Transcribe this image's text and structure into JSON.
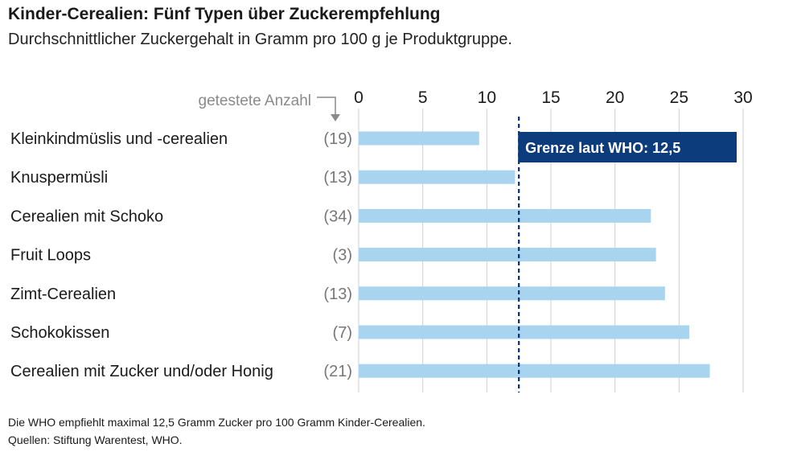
{
  "chart_data": {
    "type": "bar",
    "orientation": "horizontal",
    "title": "Kinder-Cerealien: Fünf Typen über Zuckerempfehlung",
    "subtitle": "Durchschnittlicher Zuckergehalt in Gramm pro 100 g je Produktgruppe.",
    "count_header": "getestete Anzahl",
    "categories": [
      "Kleinkindmüslis und -cerealien",
      "Knuspermüsli",
      "Cerealien mit Schoko",
      "Fruit Loops",
      "Zimt-Cerealien",
      "Schokokissen",
      "Cerealien mit Zucker und/oder Honig"
    ],
    "counts": [
      "(19)",
      "(13)",
      "(34)",
      "(3)",
      "(13)",
      "(7)",
      "(21)"
    ],
    "values": [
      9.4,
      12.2,
      22.8,
      23.2,
      23.9,
      25.8,
      27.4
    ],
    "xlim": [
      0,
      30
    ],
    "ticks": [
      0,
      5,
      10,
      15,
      20,
      25,
      30
    ],
    "grid": true,
    "reference_line": {
      "value": 12.5,
      "label": "Grenze laut WHO: 12,5"
    },
    "colors": {
      "bar": "#a9d4f0",
      "grid": "#cfcfcf",
      "who_line": "#0d2b66",
      "who_box": "#0d3c7c"
    }
  },
  "footnote": {
    "line1": "Die WHO empfiehlt maximal 12,5 Gramm Zucker pro 100 Gramm Kinder-Cerealien.",
    "line2": "Quellen: Stiftung Warentest, WHO."
  }
}
